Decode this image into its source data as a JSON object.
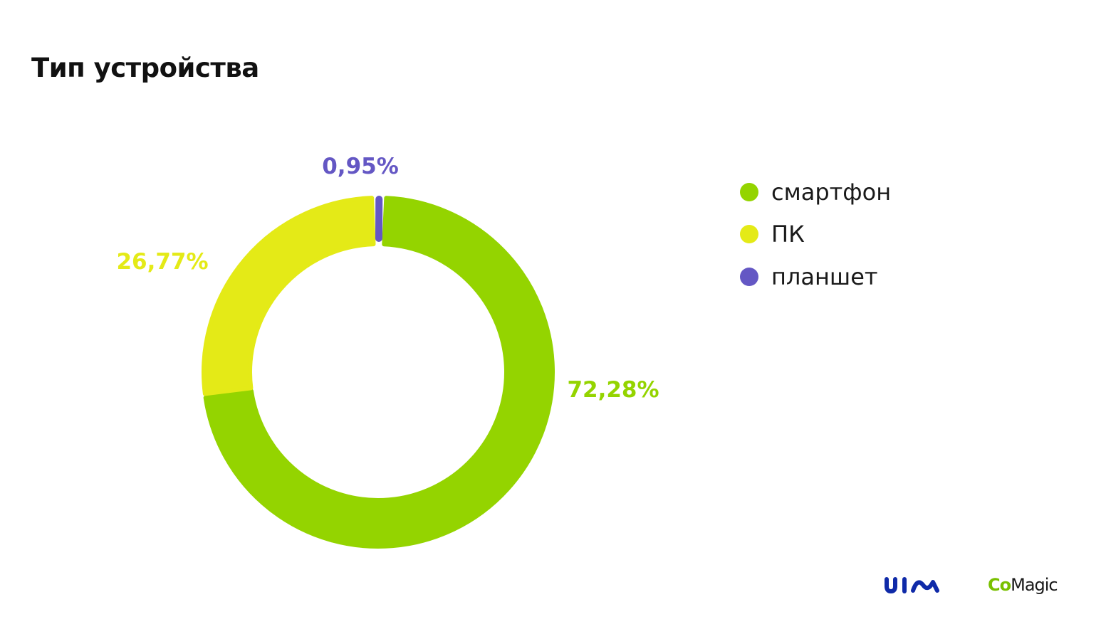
{
  "page": {
    "title": "Тип устройства"
  },
  "chart_data": {
    "type": "pie",
    "variant": "donut",
    "categories": [
      "смартфон",
      "ПК",
      "планшет"
    ],
    "values": [
      72.28,
      26.77,
      0.95
    ],
    "value_labels": [
      "72,28%",
      "26,77%",
      "0,95%"
    ],
    "colors": [
      "#94d400",
      "#e4ea17",
      "#6457c4"
    ],
    "legend_position": "right"
  },
  "legend": {
    "items": [
      {
        "label": "смартфон",
        "color": "#94d400"
      },
      {
        "label": "ПК",
        "color": "#e4ea17"
      },
      {
        "label": "планшет",
        "color": "#6457c4"
      }
    ]
  },
  "footer": {
    "logo_uis_icon": "uis-logo-icon",
    "logo_comagic_co": "Co",
    "logo_comagic_magic": "Magic"
  }
}
